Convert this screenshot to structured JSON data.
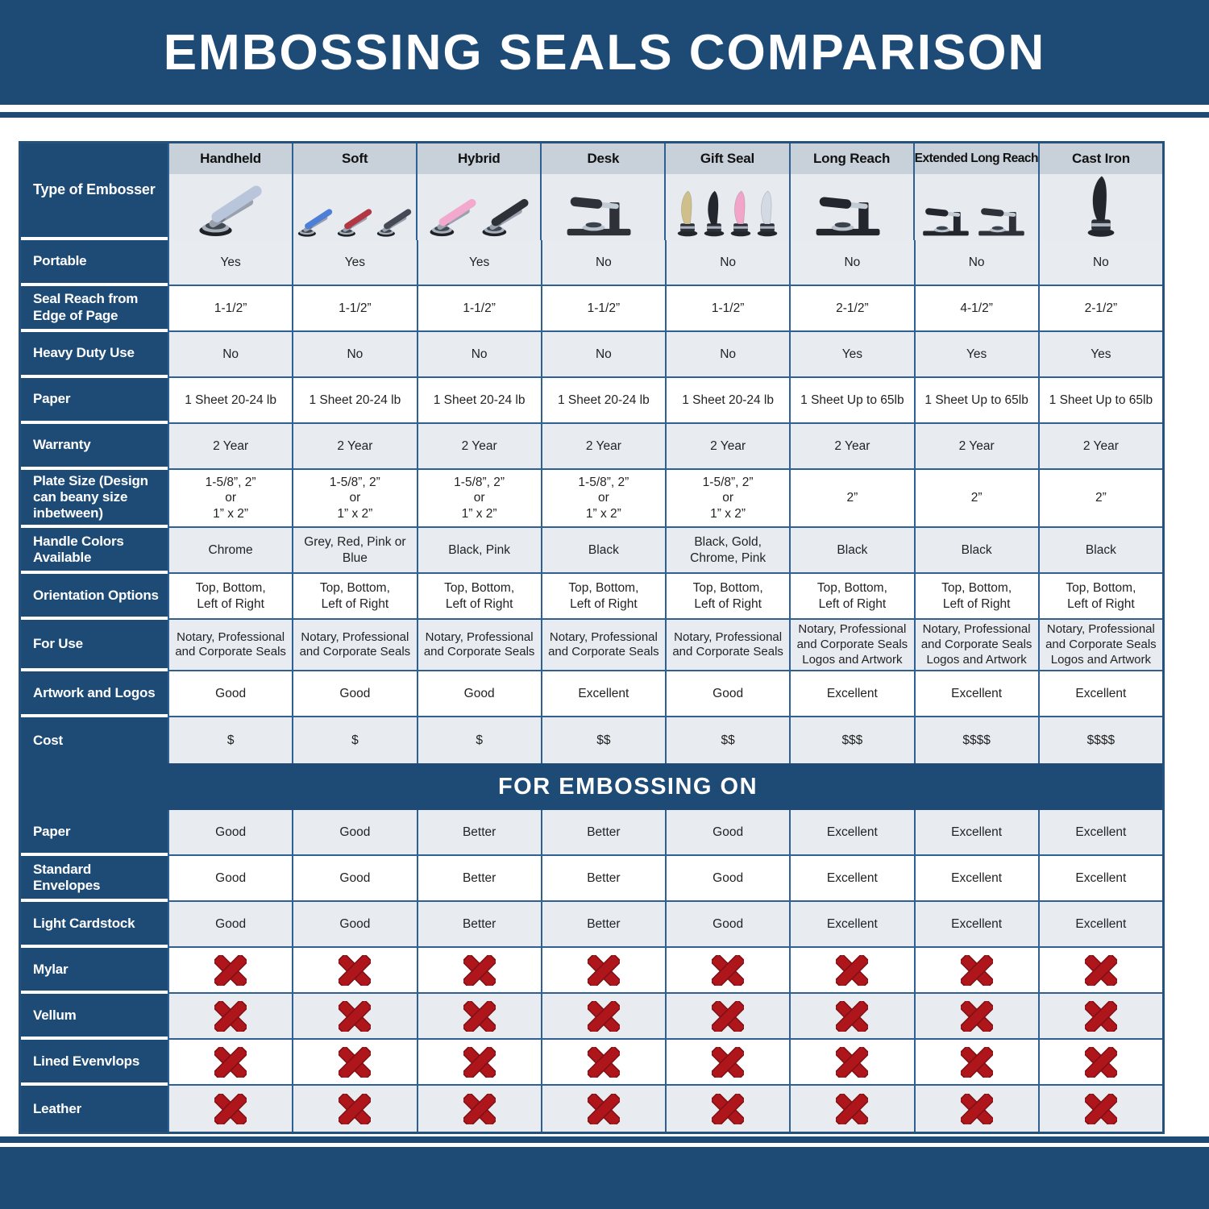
{
  "page": {
    "title": "EMBOSSING SEALS COMPARISON",
    "section_title": "FOR EMBOSSING ON"
  },
  "colors": {
    "navy": "#1d4b76",
    "grid": "#2e6094",
    "outer": "#24527f",
    "header_strip": "#c8d0d9",
    "image_area": "#e7eaee",
    "row_light": "#e8ecf1",
    "row_white": "#ffffff",
    "x_red": "#ae161c",
    "x_red_dark": "#7e1014"
  },
  "type_row_label": "Type of Embosser",
  "x_icon_name": "not-suitable-x-icon",
  "columns": [
    {
      "label": "Handheld",
      "image": {
        "icon": "handheld-embosser-image",
        "style": "pliers",
        "colors": [
          "#b9c5da"
        ]
      }
    },
    {
      "label": "Soft",
      "image": {
        "icon": "soft-embosser-image",
        "style": "pliers",
        "colors": [
          "#4d7fd6",
          "#b23744",
          "#454a55"
        ]
      }
    },
    {
      "label": "Hybrid",
      "image": {
        "icon": "hybrid-embosser-image",
        "style": "pliers",
        "colors": [
          "#f2a9cd",
          "#2e3138"
        ]
      }
    },
    {
      "label": "Desk",
      "image": {
        "icon": "desk-embosser-image",
        "style": "desk",
        "colors": [
          "#2e3138"
        ]
      }
    },
    {
      "label": "Gift Seal",
      "image": {
        "icon": "gift-seal-embosser-image",
        "style": "upright",
        "colors": [
          "#cfc08b",
          "#23262c",
          "#f0a5c9",
          "#d3dae4"
        ]
      }
    },
    {
      "label": "Long Reach",
      "image": {
        "icon": "long-reach-embosser-image",
        "style": "desk",
        "colors": [
          "#23262c"
        ]
      }
    },
    {
      "label": "Extended Long Reach",
      "image": {
        "icon": "extended-long-reach-embosser-image",
        "style": "desk",
        "colors": [
          "#23262c",
          "#2e3138"
        ]
      }
    },
    {
      "label": "Cast Iron",
      "image": {
        "icon": "cast-iron-embosser-image",
        "style": "upright",
        "colors": [
          "#23262c"
        ]
      }
    }
  ],
  "feature_rows": [
    {
      "label": "Portable",
      "values": [
        "Yes",
        "Yes",
        "Yes",
        "No",
        "No",
        "No",
        "No",
        "No"
      ]
    },
    {
      "label": "Seal Reach from Edge of Page",
      "values": [
        "1-1/2”",
        "1-1/2”",
        "1-1/2”",
        "1-1/2”",
        "1-1/2”",
        "2-1/2”",
        "4-1/2”",
        "2-1/2”"
      ]
    },
    {
      "label": "Heavy Duty Use",
      "values": [
        "No",
        "No",
        "No",
        "No",
        "No",
        "Yes",
        "Yes",
        "Yes"
      ]
    },
    {
      "label": "Paper",
      "values": [
        "1 Sheet 20-24 lb",
        "1 Sheet 20-24 lb",
        "1 Sheet 20-24 lb",
        "1 Sheet 20-24 lb",
        "1 Sheet 20-24 lb",
        "1 Sheet Up to 65lb",
        "1 Sheet Up to 65lb",
        "1 Sheet Up to 65lb"
      ]
    },
    {
      "label": "Warranty",
      "values": [
        "2 Year",
        "2 Year",
        "2 Year",
        "2 Year",
        "2 Year",
        "2 Year",
        "2 Year",
        "2 Year"
      ]
    },
    {
      "label": "Plate Size (Design can beany size inbetween)",
      "values": [
        "1-5/8”, 2”\nor\n1” x 2”",
        "1-5/8”, 2”\nor\n1” x 2”",
        "1-5/8”, 2”\nor\n1” x 2”",
        "1-5/8”, 2”\nor\n1” x 2”",
        "1-5/8”, 2”\nor\n1” x 2”",
        "2”",
        "2”",
        "2”"
      ]
    },
    {
      "label": "Handle Colors Available",
      "values": [
        "Chrome",
        "Grey, Red, Pink or Blue",
        "Black, Pink",
        "Black",
        "Black, Gold, Chrome, Pink",
        "Black",
        "Black",
        "Black"
      ]
    },
    {
      "label": "Orientation Options",
      "values": [
        "Top, Bottom,\nLeft of Right",
        "Top, Bottom,\nLeft of Right",
        "Top, Bottom,\nLeft of Right",
        "Top, Bottom,\nLeft of Right",
        "Top, Bottom,\nLeft of Right",
        "Top, Bottom,\nLeft of Right",
        "Top, Bottom,\nLeft of Right",
        "Top, Bottom,\nLeft of Right"
      ]
    },
    {
      "label": "For Use",
      "values": [
        "Notary, Professional\nand Corporate Seals",
        "Notary, Professional\nand Corporate Seals",
        "Notary, Professional\nand Corporate Seals",
        "Notary, Professional\nand Corporate Seals",
        "Notary, Professional\nand Corporate Seals",
        "Notary, Professional\nand Corporate Seals\nLogos and Artwork",
        "Notary, Professional\nand Corporate Seals\nLogos and Artwork",
        "Notary, Professional\nand Corporate Seals\nLogos and Artwork"
      ]
    },
    {
      "label": "Artwork and Logos",
      "values": [
        "Good",
        "Good",
        "Good",
        "Excellent",
        "Good",
        "Excellent",
        "Excellent",
        "Excellent"
      ]
    },
    {
      "label": "Cost",
      "values": [
        "$",
        "$",
        "$",
        "$$",
        "$$",
        "$$$",
        "$$$$",
        "$$$$"
      ]
    }
  ],
  "embossing_rows": [
    {
      "label": "Paper",
      "values": [
        "Good",
        "Good",
        "Better",
        "Better",
        "Good",
        "Excellent",
        "Excellent",
        "Excellent"
      ]
    },
    {
      "label": "Standard Envelopes",
      "values": [
        "Good",
        "Good",
        "Better",
        "Better",
        "Good",
        "Excellent",
        "Excellent",
        "Excellent"
      ]
    },
    {
      "label": "Light Cardstock",
      "values": [
        "Good",
        "Good",
        "Better",
        "Better",
        "Good",
        "Excellent",
        "Excellent",
        "Excellent"
      ]
    },
    {
      "label": "Mylar",
      "values": [
        "x",
        "x",
        "x",
        "x",
        "x",
        "x",
        "x",
        "x"
      ]
    },
    {
      "label": "Vellum",
      "values": [
        "x",
        "x",
        "x",
        "x",
        "x",
        "x",
        "x",
        "x"
      ]
    },
    {
      "label": "Lined Evenvlops",
      "values": [
        "x",
        "x",
        "x",
        "x",
        "x",
        "x",
        "x",
        "x"
      ]
    },
    {
      "label": "Leather",
      "values": [
        "x",
        "x",
        "x",
        "x",
        "x",
        "x",
        "x",
        "x"
      ]
    }
  ]
}
